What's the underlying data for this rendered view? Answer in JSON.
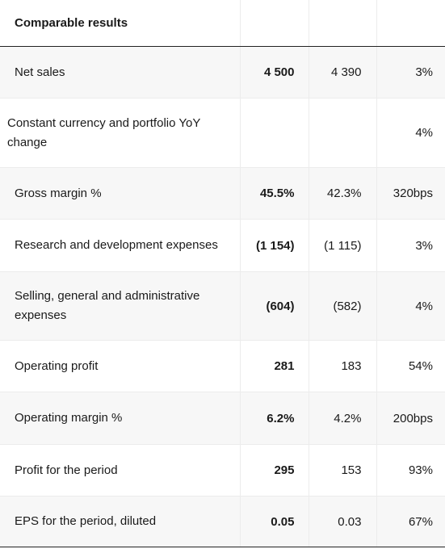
{
  "header": {
    "title": "Comparable results",
    "col2": "",
    "col3": "",
    "col4": ""
  },
  "rows": [
    {
      "label": "Net sales",
      "current": "4 500",
      "prior": "4 390",
      "change": "3%"
    },
    {
      "label": "Constant currency and portfolio YoY change",
      "current": "",
      "prior": "",
      "change": "4%"
    },
    {
      "label": "Gross margin %",
      "current": "45.5%",
      "prior": "42.3%",
      "change": "320bps"
    },
    {
      "label": "Research and development expenses",
      "current": "(1 154)",
      "prior": "(1 115)",
      "change": "3%"
    },
    {
      "label": "Selling, general and administrative expenses",
      "current": "(604)",
      "prior": "(582)",
      "change": "4%"
    },
    {
      "label": "Operating profit",
      "current": "281",
      "prior": "183",
      "change": "54%"
    },
    {
      "label": "Operating margin %",
      "current": "6.2%",
      "prior": "4.2%",
      "change": "200bps"
    },
    {
      "label": "Profit for the period",
      "current": "295",
      "prior": "153",
      "change": "93%"
    },
    {
      "label": "EPS for the period, diluted",
      "current": "0.05",
      "prior": "0.03",
      "change": "67%"
    }
  ]
}
